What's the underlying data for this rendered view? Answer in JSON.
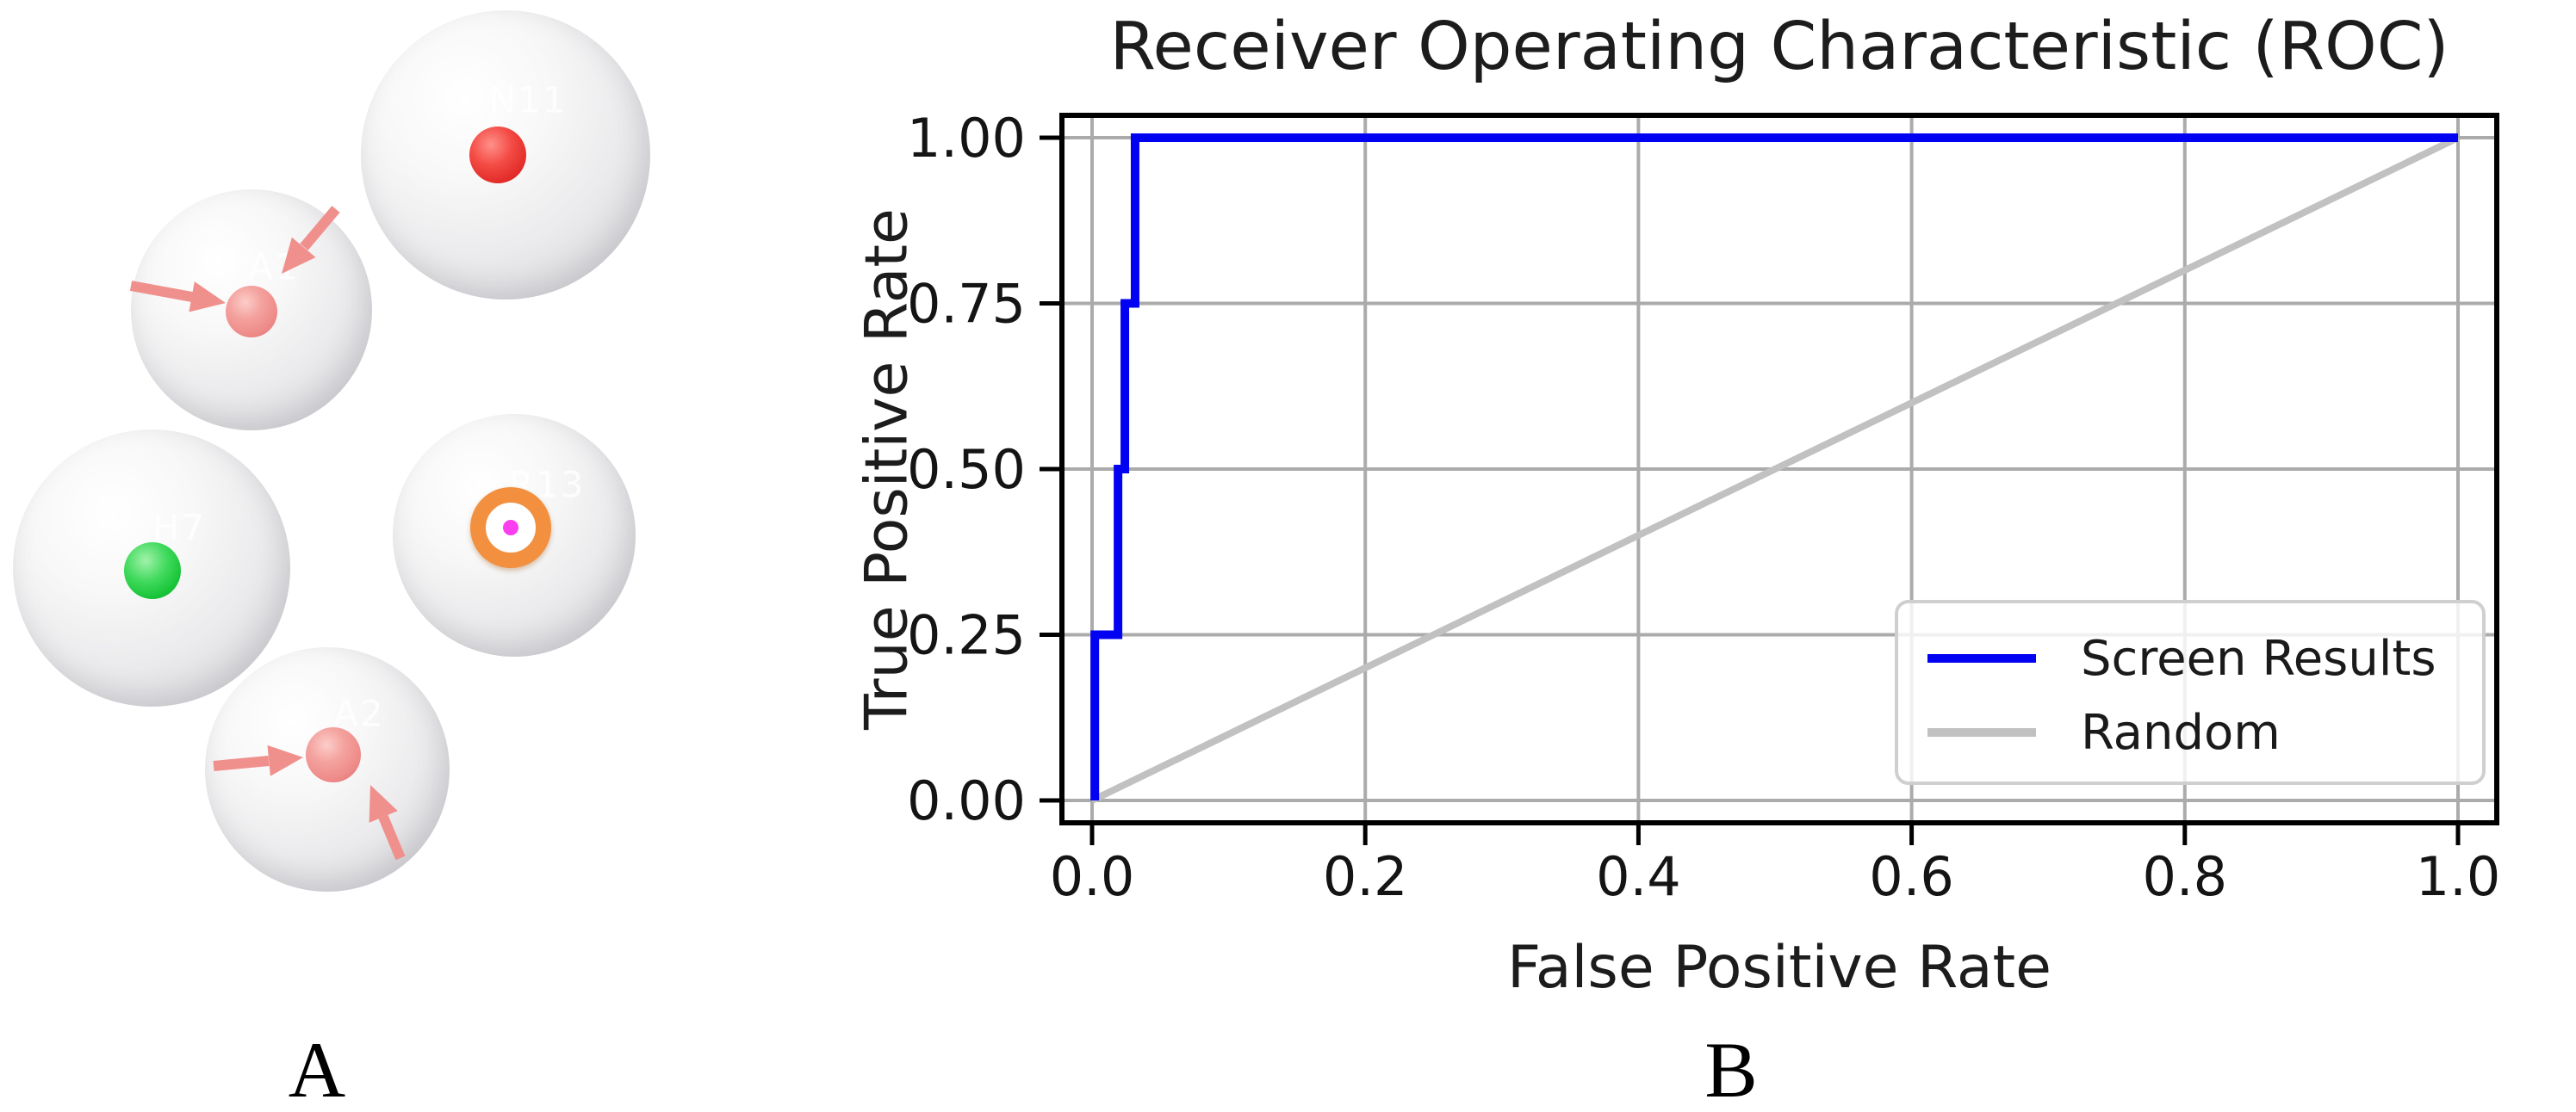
{
  "panel_a": {
    "panel_label": "A",
    "description": "five translucent gray spheres with colored center markers",
    "spheres": [
      {
        "label": "N11",
        "marker": "red-ball"
      },
      {
        "label": "A1",
        "marker": "salmon-ball",
        "arrows": 2
      },
      {
        "label": "H7",
        "marker": "green-ball"
      },
      {
        "label": "R13",
        "marker": "orange-ring-with-magenta-dot"
      },
      {
        "label": "A2",
        "marker": "salmon-ball",
        "arrows": 2
      }
    ],
    "colors": {
      "sphere_gray": "#ebebed",
      "red": "#e93b35",
      "salmon": "#f0908d",
      "green": "#1dc93e",
      "orange": "#f29040",
      "magenta": "#fb3ef0",
      "arrow": "#f0908d",
      "label_text": "#ffffff"
    }
  },
  "panel_b": {
    "panel_label": "B"
  },
  "chart_data": {
    "type": "line",
    "title": "Receiver Operating Characteristic (ROC)",
    "xlabel": "False Positive Rate",
    "ylabel": "True Positive Rate",
    "xlim": [
      -0.04,
      1.04
    ],
    "ylim": [
      -0.04,
      1.04
    ],
    "grid": true,
    "grid_color": "#ababab",
    "legend_position": "lower right",
    "xticks": [
      0.0,
      0.2,
      0.4,
      0.6,
      0.8,
      1.0
    ],
    "xtick_labels": [
      "0.0",
      "0.2",
      "0.4",
      "0.6",
      "0.8",
      "1.0"
    ],
    "yticks": [
      0.0,
      0.25,
      0.5,
      0.75,
      1.0
    ],
    "ytick_labels": [
      "0.00",
      "0.25",
      "0.50",
      "0.75",
      "1.00"
    ],
    "series": [
      {
        "name": "Screen Results",
        "color": "#0202f2",
        "line_width": 10,
        "points": [
          [
            0.002,
            0.0
          ],
          [
            0.002,
            0.25
          ],
          [
            0.019,
            0.25
          ],
          [
            0.019,
            0.5
          ],
          [
            0.024,
            0.5
          ],
          [
            0.024,
            0.75
          ],
          [
            0.0315,
            0.75
          ],
          [
            0.0315,
            1.0
          ],
          [
            1.0,
            1.0
          ]
        ]
      },
      {
        "name": "Random",
        "color": "#c1c1c1",
        "line_width": 8,
        "points": [
          [
            0.0,
            0.0
          ],
          [
            1.0,
            1.0
          ]
        ]
      }
    ]
  }
}
